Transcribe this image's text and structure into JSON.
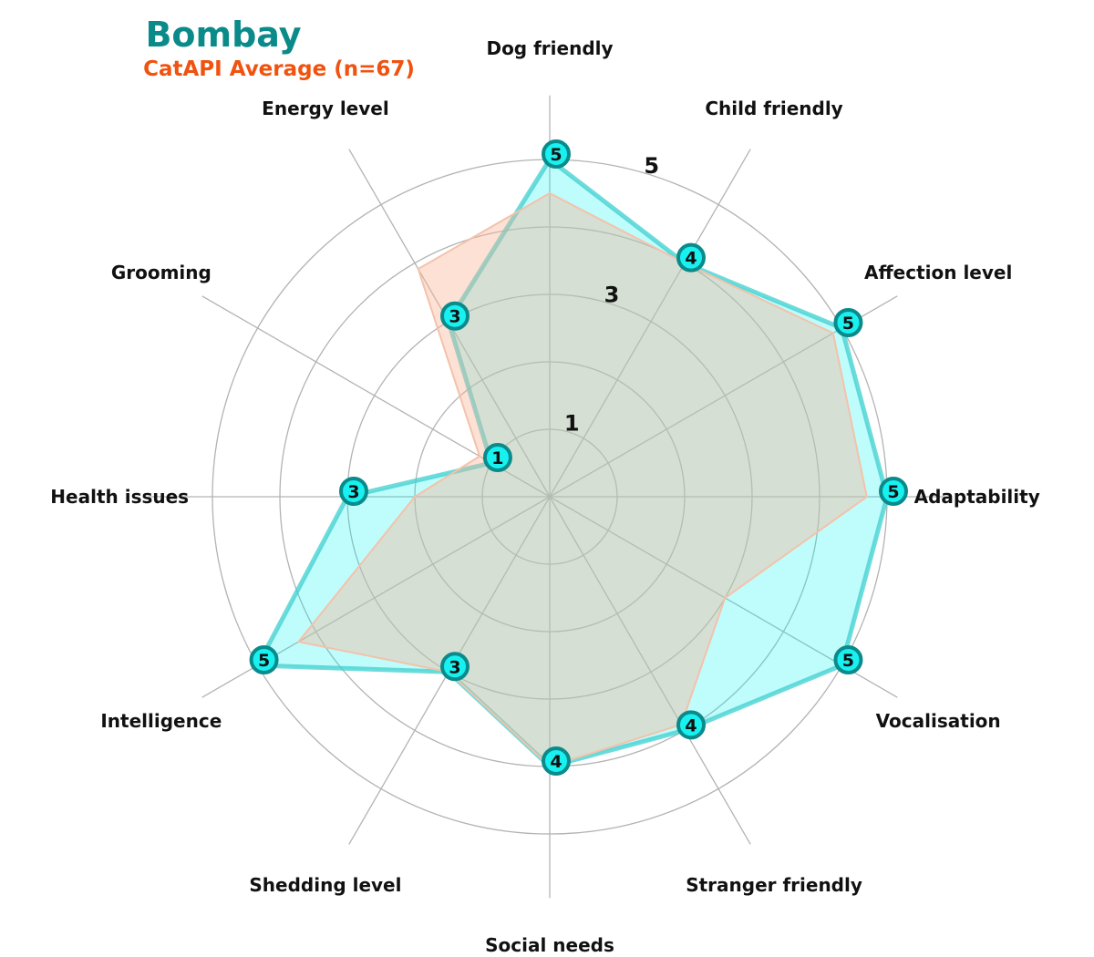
{
  "colors": {
    "title": "#0b8a8a",
    "subtitle": "#f0520f",
    "breed_fill": "#00f5f5",
    "breed_stroke": "#3ecfcf",
    "average_fill": "#f9b497",
    "average_stroke": "#f3c2ab",
    "marker_fill": "#19f0f0",
    "marker_edge": "#0a8a8a",
    "grid": "#b3b3b3"
  },
  "chart_data": {
    "type": "radar",
    "title": "Bombay",
    "subtitle": "CatAPI Average (n=67)",
    "axes": [
      "Dog friendly",
      "Child friendly",
      "Affection level",
      "Adaptability",
      "Vocalisation",
      "Stranger friendly",
      "Social needs",
      "Shedding level",
      "Intelligence",
      "Health issues",
      "Grooming",
      "Energy level"
    ],
    "rlim": [
      0,
      5
    ],
    "ring_values": [
      1,
      2,
      3,
      4,
      5
    ],
    "ring_labels": [
      "1",
      "3",
      "5"
    ],
    "grid": true,
    "series": [
      {
        "name": "Bombay",
        "values": [
          5,
          4,
          5,
          5,
          5,
          4,
          4,
          3,
          5,
          3,
          1,
          3
        ]
      },
      {
        "name": "CatAPI Average (n=67)",
        "values": [
          4.5,
          4.0,
          4.85,
          4.7,
          3.0,
          3.9,
          4.0,
          3.0,
          4.3,
          2.0,
          1.2,
          3.9
        ]
      }
    ]
  }
}
